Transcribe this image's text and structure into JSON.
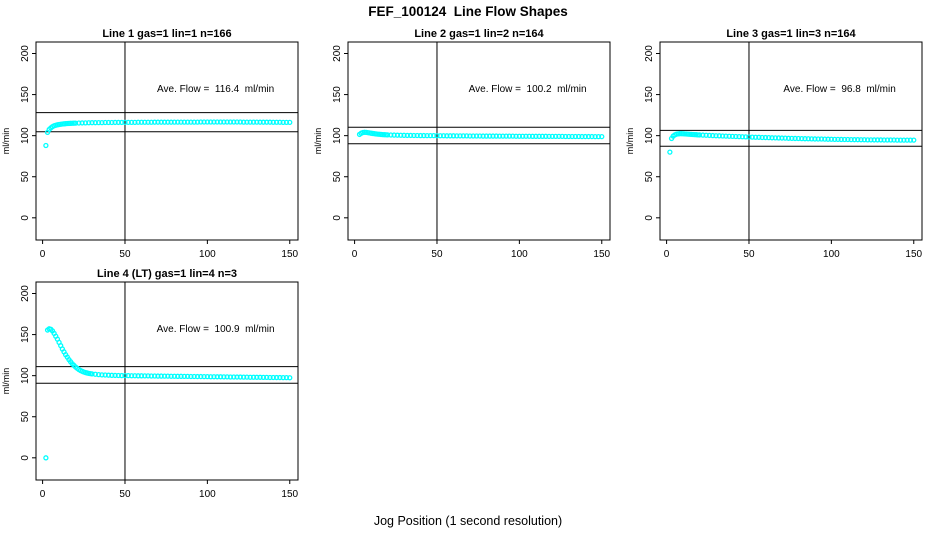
{
  "chart_data": {
    "type": "scatter",
    "title": "FEF_100124  Line Flow Shapes",
    "xlabel": "Jog Position (1 second resolution)",
    "ylabel": "ml/min",
    "point_color": "#00FFFF",
    "axis_color": "#000000",
    "grid": false,
    "legend": false,
    "xticks": [
      0,
      50,
      100,
      150
    ],
    "yticks": [
      0,
      50,
      100,
      150,
      200
    ],
    "xlim": [
      -4,
      155
    ],
    "ylim": [
      -27,
      214
    ],
    "subplots": [
      {
        "title": "Line 1 gas=1 lin=1 n=166",
        "annotation": "Ave. Flow =  116.4  ml/min",
        "ave_flow": 116.4,
        "units": "ml/min",
        "ref_hlines": [
          128.0,
          104.8
        ],
        "ref_vline": 50,
        "x": [
          2,
          3,
          4,
          5,
          6,
          7,
          8,
          9,
          10,
          11,
          12,
          13,
          14,
          15,
          16,
          17,
          18,
          19,
          20,
          22,
          24,
          26,
          28,
          30,
          32,
          34,
          36,
          38,
          40,
          42,
          44,
          46,
          48,
          50,
          52,
          54,
          56,
          58,
          60,
          62,
          64,
          66,
          68,
          70,
          72,
          74,
          76,
          78,
          80,
          82,
          84,
          86,
          88,
          90,
          92,
          94,
          96,
          98,
          100,
          102,
          104,
          106,
          108,
          110,
          112,
          114,
          116,
          118,
          120,
          122,
          124,
          126,
          128,
          130,
          132,
          134,
          136,
          138,
          140,
          142,
          144,
          146,
          148,
          150
        ],
        "y": [
          88,
          104,
          107.5,
          109.5,
          111,
          112,
          112.7,
          113.2,
          113.6,
          113.9,
          114.2,
          114.4,
          114.6,
          114.8,
          114.9,
          115,
          115.1,
          115.2,
          115.3,
          115.4,
          115.5,
          115.6,
          115.7,
          115.8,
          115.8,
          115.9,
          115.9,
          116,
          116,
          116,
          116.1,
          116.1,
          116.1,
          116.2,
          116.2,
          116.2,
          116.2,
          116.3,
          116.3,
          116.3,
          116.3,
          116.3,
          116.4,
          116.4,
          116.4,
          116.4,
          116.4,
          116.4,
          116.5,
          116.5,
          116.5,
          116.5,
          116.5,
          116.5,
          116.5,
          116.5,
          116.6,
          116.6,
          116.6,
          116.6,
          116.6,
          116.6,
          116.6,
          116.6,
          116.6,
          116.6,
          116.6,
          116.6,
          116.6,
          116.5,
          116.5,
          116.5,
          116.5,
          116.5,
          116.4,
          116.4,
          116.4,
          116.4,
          116.3,
          116.3,
          116.3,
          116.2,
          116.2,
          116.2
        ]
      },
      {
        "title": "Line 2 gas=1 lin=2 n=164",
        "annotation": "Ave. Flow =  100.2  ml/min",
        "ave_flow": 100.2,
        "units": "ml/min",
        "ref_hlines": [
          110.2,
          90.2
        ],
        "ref_vline": 50,
        "x": [
          3,
          4,
          5,
          6,
          7,
          8,
          9,
          10,
          11,
          12,
          13,
          14,
          15,
          16,
          17,
          18,
          19,
          20,
          22,
          24,
          26,
          28,
          30,
          32,
          34,
          36,
          38,
          40,
          42,
          44,
          46,
          48,
          50,
          52,
          54,
          56,
          58,
          60,
          62,
          64,
          66,
          68,
          70,
          72,
          74,
          76,
          78,
          80,
          82,
          84,
          86,
          88,
          90,
          92,
          94,
          96,
          98,
          100,
          102,
          104,
          106,
          108,
          110,
          112,
          114,
          116,
          118,
          120,
          122,
          124,
          126,
          128,
          130,
          132,
          134,
          136,
          138,
          140,
          142,
          144,
          146,
          148,
          150
        ],
        "y": [
          101.5,
          103,
          103.8,
          104.1,
          104,
          103.7,
          103.4,
          103,
          102.7,
          102.4,
          102.1,
          101.9,
          101.7,
          101.5,
          101.3,
          101.2,
          101.1,
          101,
          100.8,
          100.7,
          100.6,
          100.5,
          100.4,
          100.3,
          100.3,
          100.2,
          100.2,
          100.1,
          100.1,
          100,
          100,
          100,
          99.9,
          99.9,
          99.9,
          99.8,
          99.8,
          99.8,
          99.7,
          99.7,
          99.7,
          99.7,
          99.6,
          99.6,
          99.6,
          99.6,
          99.5,
          99.5,
          99.5,
          99.5,
          99.5,
          99.4,
          99.4,
          99.4,
          99.4,
          99.4,
          99.3,
          99.3,
          99.3,
          99.3,
          99.3,
          99.2,
          99.2,
          99.2,
          99.2,
          99.2,
          99.1,
          99.1,
          99.1,
          99.1,
          99.1,
          99,
          99,
          99,
          99,
          99,
          98.9,
          98.9,
          98.9,
          98.9,
          98.8,
          98.8,
          98.8
        ]
      },
      {
        "title": "Line 3 gas=1 lin=3 n=164",
        "annotation": "Ave. Flow =  96.8  ml/min",
        "ave_flow": 96.8,
        "units": "ml/min",
        "ref_hlines": [
          106.5,
          87.1
        ],
        "ref_vline": 50,
        "x": [
          2,
          3,
          4,
          5,
          6,
          7,
          8,
          9,
          10,
          11,
          12,
          13,
          14,
          15,
          16,
          17,
          18,
          19,
          20,
          22,
          24,
          26,
          28,
          30,
          32,
          34,
          36,
          38,
          40,
          42,
          44,
          46,
          48,
          50,
          52,
          54,
          56,
          58,
          60,
          62,
          64,
          66,
          68,
          70,
          72,
          74,
          76,
          78,
          80,
          82,
          84,
          86,
          88,
          90,
          92,
          94,
          96,
          98,
          100,
          102,
          104,
          106,
          108,
          110,
          112,
          114,
          116,
          118,
          120,
          122,
          124,
          126,
          128,
          130,
          132,
          134,
          136,
          138,
          140,
          142,
          144,
          146,
          148,
          150
        ],
        "y": [
          80,
          96.5,
          99.5,
          101,
          101.8,
          102.2,
          102.4,
          102.4,
          102.3,
          102.2,
          102,
          101.9,
          101.7,
          101.6,
          101.4,
          101.3,
          101.2,
          101,
          100.9,
          100.7,
          100.5,
          100.3,
          100.1,
          99.9,
          99.8,
          99.6,
          99.4,
          99.3,
          99.1,
          99,
          98.8,
          98.7,
          98.5,
          98.4,
          98.2,
          98.1,
          98,
          97.8,
          97.7,
          97.6,
          97.4,
          97.3,
          97.2,
          97.1,
          97,
          96.8,
          96.7,
          96.6,
          96.5,
          96.4,
          96.3,
          96.2,
          96.1,
          96,
          95.9,
          95.9,
          95.8,
          95.7,
          95.6,
          95.5,
          95.5,
          95.4,
          95.3,
          95.3,
          95.2,
          95.1,
          95.1,
          95,
          95,
          94.9,
          94.9,
          94.8,
          94.8,
          94.8,
          94.7,
          94.7,
          94.7,
          94.7,
          94.6,
          94.6,
          94.6,
          94.6,
          94.6,
          94.6
        ]
      },
      {
        "title": "Line 4 (LT) gas=1 lin=4 n=3",
        "annotation": "Ave. Flow =  100.9  ml/min",
        "ave_flow": 100.9,
        "units": "ml/min",
        "ref_hlines": [
          111.0,
          90.8
        ],
        "ref_vline": 50,
        "x": [
          2,
          3,
          4,
          5,
          6,
          7,
          8,
          9,
          10,
          11,
          12,
          13,
          14,
          15,
          16,
          17,
          18,
          19,
          20,
          21,
          22,
          23,
          24,
          25,
          26,
          27,
          28,
          29,
          30,
          32,
          34,
          36,
          38,
          40,
          42,
          44,
          46,
          48,
          50,
          52,
          54,
          56,
          58,
          60,
          62,
          64,
          66,
          68,
          70,
          72,
          74,
          76,
          78,
          80,
          82,
          84,
          86,
          88,
          90,
          92,
          94,
          96,
          98,
          100,
          102,
          104,
          106,
          108,
          110,
          112,
          114,
          116,
          118,
          120,
          122,
          124,
          126,
          128,
          130,
          132,
          134,
          136,
          138,
          140,
          142,
          144,
          146,
          148,
          150
        ],
        "y": [
          0,
          155.5,
          157,
          156.5,
          154.5,
          151.5,
          148,
          144.5,
          140.5,
          136.5,
          132.5,
          129,
          125.5,
          122.5,
          119.5,
          117,
          114.5,
          112.5,
          110.5,
          109,
          107.5,
          106.3,
          105.3,
          104.5,
          103.8,
          103.3,
          102.8,
          102.5,
          102.2,
          101.7,
          101.3,
          101,
          100.8,
          100.6,
          100.4,
          100.3,
          100.2,
          100.1,
          100,
          100,
          99.9,
          99.9,
          99.8,
          99.8,
          99.7,
          99.7,
          99.6,
          99.6,
          99.5,
          99.5,
          99.4,
          99.4,
          99.3,
          99.3,
          99.2,
          99.2,
          99.1,
          99.1,
          99,
          99,
          98.9,
          98.9,
          98.8,
          98.8,
          98.7,
          98.7,
          98.6,
          98.6,
          98.5,
          98.5,
          98.4,
          98.4,
          98.3,
          98.3,
          98.2,
          98.2,
          98.1,
          98.1,
          98,
          98,
          97.9,
          97.9,
          97.8,
          97.8,
          97.7,
          97.7,
          97.6,
          97.6,
          97.5
        ]
      }
    ]
  }
}
